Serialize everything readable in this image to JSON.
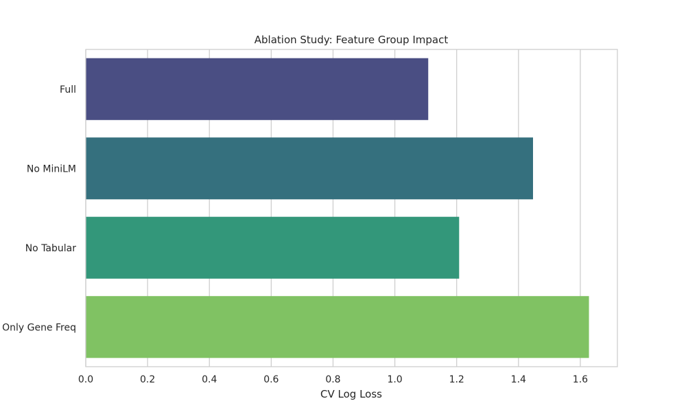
{
  "chart_data": {
    "type": "bar",
    "orientation": "horizontal",
    "title": "Ablation Study: Feature Group Impact",
    "xlabel": "CV Log Loss",
    "ylabel": "",
    "categories": [
      "Full",
      "No MiniLM",
      "No Tabular",
      "Only Gene Freq"
    ],
    "values": [
      1.108,
      1.447,
      1.208,
      1.628
    ],
    "colors": [
      "#4a4e83",
      "#35707e",
      "#33977a",
      "#80c263"
    ],
    "xlim": [
      0,
      1.72
    ],
    "xticks": [
      0.0,
      0.2,
      0.4,
      0.6,
      0.8,
      1.0,
      1.2,
      1.4,
      1.6
    ],
    "xtick_labels": [
      "0.0",
      "0.2",
      "0.4",
      "0.6",
      "0.8",
      "1.0",
      "1.2",
      "1.4",
      "1.6"
    ],
    "grid": "x",
    "legend": "none"
  }
}
